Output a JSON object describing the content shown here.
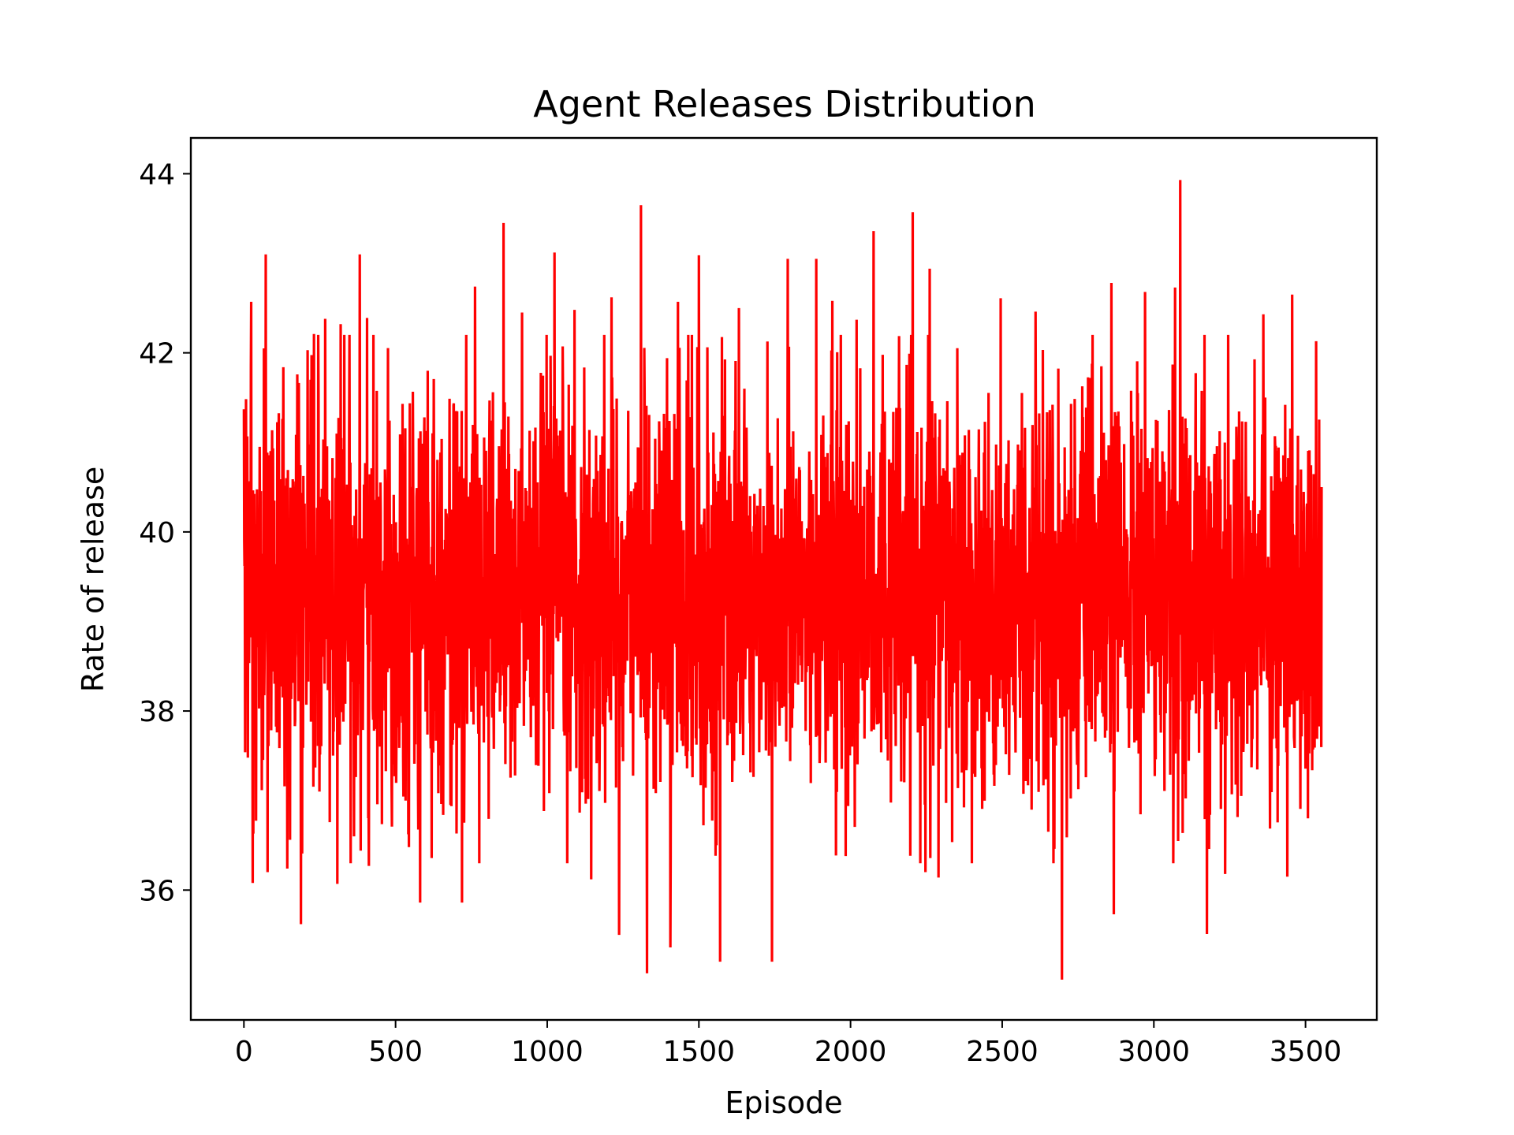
{
  "chart_data": {
    "type": "line",
    "title": "Agent Releases Distribution",
    "xlabel": "Episode",
    "ylabel": "Rate of release",
    "xlim": [
      -175,
      3735
    ],
    "ylim": [
      34.55,
      44.4
    ],
    "xticks": [
      0,
      500,
      1000,
      1500,
      2000,
      2500,
      3000,
      3500
    ],
    "yticks": [
      36,
      38,
      40,
      42,
      44
    ],
    "grid": false,
    "legend": "none",
    "colors": {
      "series": "#ff0000",
      "axes": "#000000",
      "background": "#ffffff"
    },
    "series": [
      {
        "x_start": 0,
        "x_end": 3553,
        "sample_mean": 39.3,
        "sample_spread": 1.1,
        "points": [
          [
            0,
            41.37
          ],
          [
            4,
            37.54
          ],
          [
            10,
            40.9
          ],
          [
            24,
            42.57
          ],
          [
            29,
            36.08
          ],
          [
            66,
            42.05
          ],
          [
            72,
            43.1
          ],
          [
            78,
            36.2
          ],
          [
            130,
            41.84
          ],
          [
            143,
            36.24
          ],
          [
            188,
            35.62
          ],
          [
            220,
            41.7
          ],
          [
            231,
            42.21
          ],
          [
            249,
            37.1
          ],
          [
            268,
            42.38
          ],
          [
            308,
            36.07
          ],
          [
            319,
            42.32
          ],
          [
            363,
            36.6
          ],
          [
            382,
            43.1
          ],
          [
            406,
            42.39
          ],
          [
            412,
            36.27
          ],
          [
            523,
            41.43
          ],
          [
            581,
            35.86
          ],
          [
            606,
            41.8
          ],
          [
            719,
            35.86
          ],
          [
            762,
            42.74
          ],
          [
            856,
            43.45
          ],
          [
            917,
            42.45
          ],
          [
            1024,
            43.12
          ],
          [
            1090,
            42.48
          ],
          [
            1145,
            36.12
          ],
          [
            1212,
            42.62
          ],
          [
            1237,
            35.5
          ],
          [
            1309,
            43.65
          ],
          [
            1329,
            35.07
          ],
          [
            1406,
            35.36
          ],
          [
            1431,
            42.57
          ],
          [
            1500,
            43.09
          ],
          [
            1570,
            35.2
          ],
          [
            1632,
            42.5
          ],
          [
            1741,
            35.2
          ],
          [
            1793,
            43.05
          ],
          [
            1887,
            43.05
          ],
          [
            1940,
            42.58
          ],
          [
            2020,
            42.37
          ],
          [
            2076,
            43.36
          ],
          [
            2205,
            43.57
          ],
          [
            2247,
            36.2
          ],
          [
            2261,
            42.94
          ],
          [
            2290,
            36.14
          ],
          [
            2495,
            42.61
          ],
          [
            2610,
            42.46
          ],
          [
            2697,
            35.0
          ],
          [
            2860,
            42.78
          ],
          [
            2868,
            35.73
          ],
          [
            2971,
            42.68
          ],
          [
            3070,
            42.73
          ],
          [
            3087,
            43.93
          ],
          [
            3175,
            35.51
          ],
          [
            3235,
            36.18
          ],
          [
            3361,
            42.43
          ],
          [
            3440,
            36.15
          ],
          [
            3456,
            42.65
          ],
          [
            3535,
            42.13
          ],
          [
            3553,
            40.5
          ]
        ]
      }
    ]
  }
}
